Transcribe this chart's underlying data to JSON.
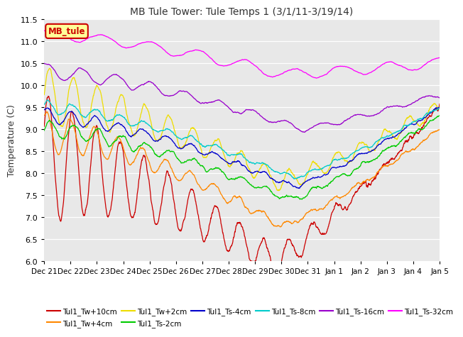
{
  "title": "MB Tule Tower: Tule Temps 1 (3/1/11-3/19/14)",
  "ylabel": "Temperature (C)",
  "ylim": [
    6.0,
    11.5
  ],
  "yticks": [
    6.0,
    6.5,
    7.0,
    7.5,
    8.0,
    8.5,
    9.0,
    9.5,
    10.0,
    10.5,
    11.0,
    11.5
  ],
  "bg_color": "#e8e8e8",
  "series": [
    {
      "label": "Tul1_Tw+10cm",
      "color": "#cc0000"
    },
    {
      "label": "Tul1_Tw+4cm",
      "color": "#ff8800"
    },
    {
      "label": "Tul1_Tw+2cm",
      "color": "#eedd00"
    },
    {
      "label": "Tul1_Ts-2cm",
      "color": "#00cc00"
    },
    {
      "label": "Tul1_Ts-4cm",
      "color": "#0000cc"
    },
    {
      "label": "Tul1_Ts-8cm",
      "color": "#00cccc"
    },
    {
      "label": "Tul1_Ts-16cm",
      "color": "#9900cc"
    },
    {
      "label": "Tul1_Ts-32cm",
      "color": "#ff00ff"
    }
  ],
  "legend_box_label": "MB_tule",
  "legend_box_color": "#cc0000",
  "legend_box_bg": "#ffff99",
  "x_tick_labels": [
    "Dec 21",
    "Dec 22",
    "Dec 23",
    "Dec 24",
    "Dec 25",
    "Dec 26",
    "Dec 27",
    "Dec 28",
    "Dec 29",
    "Dec 30",
    "Dec 31",
    "Jan 1",
    "Jan 2",
    "Jan 3",
    "Jan 4",
    "Jan 5"
  ],
  "n_points": 1600
}
